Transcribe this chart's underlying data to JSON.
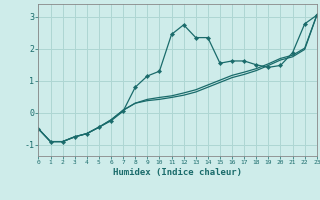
{
  "xlabel": "Humidex (Indice chaleur)",
  "background_color": "#ceecea",
  "grid_color": "#aed6d3",
  "line_color": "#1a6b6b",
  "x_data": [
    0,
    1,
    2,
    3,
    4,
    5,
    6,
    7,
    8,
    9,
    10,
    11,
    12,
    13,
    14,
    15,
    16,
    17,
    18,
    19,
    20,
    21,
    22,
    23
  ],
  "line1": [
    -0.5,
    -0.9,
    -0.9,
    -0.75,
    -0.65,
    -0.45,
    -0.25,
    0.05,
    0.8,
    1.15,
    1.3,
    2.45,
    2.75,
    2.35,
    2.35,
    1.55,
    1.62,
    1.62,
    1.5,
    1.42,
    1.48,
    1.88,
    2.78,
    3.05
  ],
  "line2": [
    -0.5,
    -0.9,
    -0.9,
    -0.75,
    -0.65,
    -0.45,
    -0.22,
    0.08,
    0.3,
    0.38,
    0.42,
    0.48,
    0.55,
    0.65,
    0.8,
    0.95,
    1.1,
    1.2,
    1.32,
    1.48,
    1.65,
    1.75,
    1.98,
    3.05
  ],
  "line3": [
    -0.5,
    -0.9,
    -0.9,
    -0.75,
    -0.65,
    -0.45,
    -0.22,
    0.08,
    0.3,
    0.42,
    0.48,
    0.53,
    0.62,
    0.72,
    0.87,
    1.02,
    1.17,
    1.27,
    1.38,
    1.53,
    1.7,
    1.8,
    2.02,
    3.05
  ],
  "xlim": [
    0,
    23
  ],
  "ylim": [
    -1.35,
    3.4
  ],
  "yticks": [
    -1,
    0,
    1,
    2,
    3
  ],
  "xticks": [
    0,
    1,
    2,
    3,
    4,
    5,
    6,
    7,
    8,
    9,
    10,
    11,
    12,
    13,
    14,
    15,
    16,
    17,
    18,
    19,
    20,
    21,
    22,
    23
  ]
}
